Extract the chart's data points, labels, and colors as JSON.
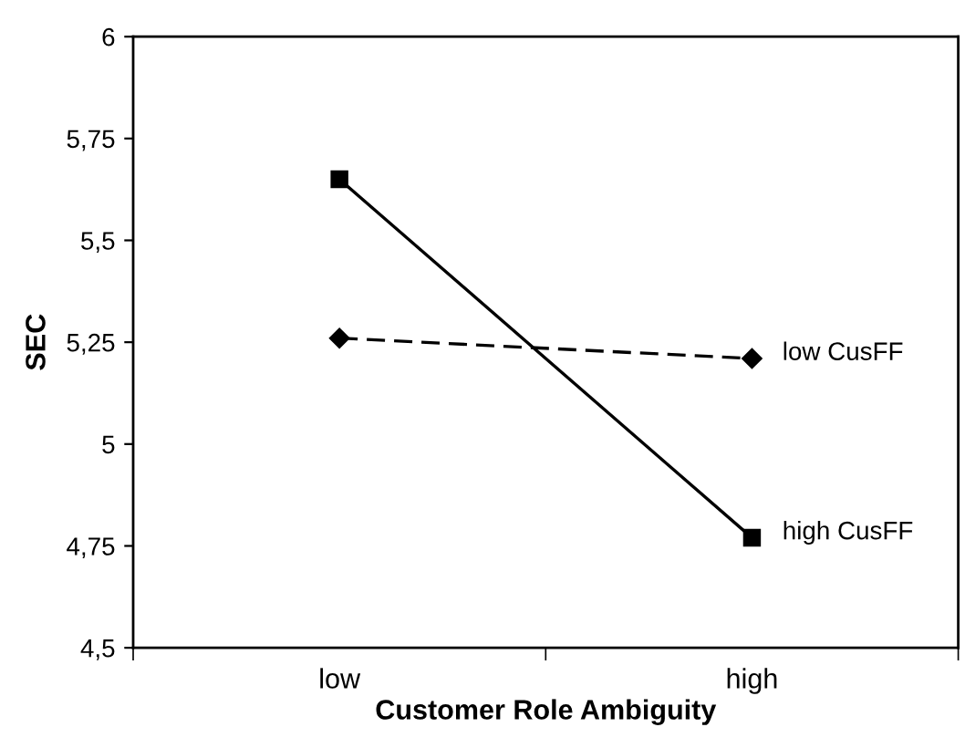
{
  "chart_data": {
    "type": "line",
    "xlabel": "Customer Role Ambiguity",
    "ylabel": "SEC",
    "categories": [
      "low",
      "high"
    ],
    "series": [
      {
        "name": "low CusFF",
        "color": "#000000",
        "values": [
          5.26,
          5.21
        ],
        "line_style": "dashed",
        "marker": "diamond"
      },
      {
        "name": "high CusFF",
        "color": "#000000",
        "values": [
          5.65,
          4.77
        ],
        "line_style": "solid",
        "marker": "square"
      }
    ],
    "ylim": [
      4.5,
      6
    ],
    "yticks": [
      {
        "value": 4.5,
        "label": "4,5"
      },
      {
        "value": 4.75,
        "label": "4,75"
      },
      {
        "value": 5,
        "label": "5"
      },
      {
        "value": 5.25,
        "label": "5,25"
      },
      {
        "value": 5.5,
        "label": "5,5"
      },
      {
        "value": 5.75,
        "label": "5,75"
      },
      {
        "value": 6,
        "label": "6"
      }
    ],
    "grid": false,
    "legend": false
  }
}
